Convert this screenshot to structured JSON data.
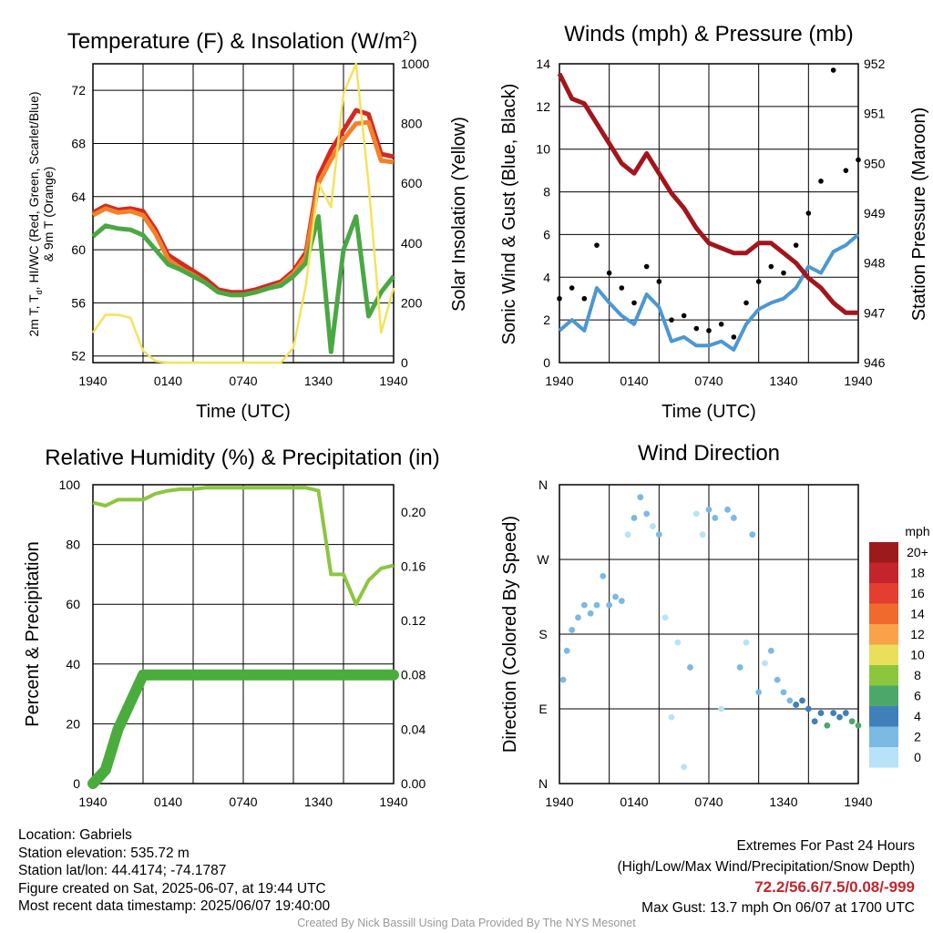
{
  "panels": {
    "temperature": {
      "title": "Temperature (F) & Insolation (W/m",
      "title_sup": "2",
      "title_end": ")",
      "ylabel_left_line1": "2m T, T",
      "ylabel_left_sub": "d",
      "ylabel_left_rest": ", HI/WC (Red, Green, Scarlet/Blue)",
      "ylabel_left_line2": "& 9m T (Orange)",
      "ylabel_right": "Solar Insolation (Yellow)",
      "xlabel": "Time (UTC)"
    },
    "winds": {
      "title": "Winds (mph) & Pressure (mb)",
      "ylabel_left": "Sonic Wind & Gust (Blue, Black)",
      "ylabel_right": "Station Pressure (Maroon)",
      "xlabel": "Time (UTC)"
    },
    "humidity": {
      "title": "Relative Humidity (%) & Precipitation (in)",
      "ylabel_left": "Percent & Precipitation"
    },
    "wind_direction": {
      "title": "Wind Direction",
      "ylabel_left": "Direction (Colored By Speed)",
      "colorbar_unit": "mph"
    }
  },
  "chart_data": [
    {
      "type": "line",
      "title": "Temperature (F) & Insolation (W/m2)",
      "xlabel": "Time (UTC)",
      "x_ticks": [
        "1940",
        "0140",
        "0740",
        "1340",
        "1940"
      ],
      "x": [
        "1940",
        "2040",
        "2140",
        "2240",
        "2340",
        "0040",
        "0140",
        "0240",
        "0340",
        "0440",
        "0540",
        "0640",
        "0740",
        "0840",
        "0940",
        "1040",
        "1140",
        "1240",
        "1340",
        "1440",
        "1540",
        "1640",
        "1740",
        "1840",
        "1940"
      ],
      "ylim_left": [
        51.5,
        74
      ],
      "y_ticks_left": [
        52,
        56,
        60,
        64,
        68,
        72
      ],
      "ylim_right": [
        0,
        1000
      ],
      "y_ticks_right": [
        0,
        200,
        400,
        600,
        800,
        1000
      ],
      "grid": true,
      "series": [
        {
          "name": "2m T",
          "color": "#d42a20",
          "axis": "left",
          "values": [
            62.8,
            63.3,
            63.0,
            63.1,
            62.9,
            61.5,
            59.6,
            59.0,
            58.4,
            57.8,
            57.0,
            56.8,
            56.8,
            57.0,
            57.3,
            57.6,
            58.4,
            59.8,
            65.5,
            67.5,
            69.0,
            70.5,
            70.2,
            67.2,
            67.0
          ]
        },
        {
          "name": "9m T",
          "color": "#f2822a",
          "axis": "left",
          "values": [
            62.6,
            63.1,
            62.8,
            62.9,
            62.6,
            61.2,
            59.3,
            58.6,
            58.1,
            57.5,
            56.8,
            56.6,
            56.6,
            56.8,
            57.1,
            57.4,
            58.2,
            59.5,
            65.0,
            66.8,
            68.3,
            69.5,
            69.6,
            66.7,
            66.6
          ]
        },
        {
          "name": "Td",
          "color": "#4aa843",
          "axis": "left",
          "values": [
            61.0,
            61.8,
            61.6,
            61.5,
            61.1,
            60.0,
            58.9,
            58.5,
            58.0,
            57.5,
            56.8,
            56.6,
            56.6,
            56.8,
            57.1,
            57.3,
            58.0,
            59.0,
            62.5,
            52.3,
            60.0,
            62.5,
            55.0,
            56.8,
            58.0
          ]
        },
        {
          "name": "Solar Insolation",
          "color": "#f5e25c",
          "axis": "right",
          "values": [
            100,
            160,
            160,
            150,
            40,
            5,
            0,
            0,
            0,
            0,
            0,
            0,
            0,
            0,
            0,
            0,
            50,
            260,
            600,
            520,
            900,
            1000,
            600,
            100,
            250
          ]
        }
      ]
    },
    {
      "type": "line",
      "title": "Winds (mph) & Pressure (mb)",
      "xlabel": "Time (UTC)",
      "x_ticks": [
        "1940",
        "0140",
        "0740",
        "1340",
        "1940"
      ],
      "x": [
        "1940",
        "2040",
        "2140",
        "2240",
        "2340",
        "0040",
        "0140",
        "0240",
        "0340",
        "0440",
        "0540",
        "0640",
        "0740",
        "0840",
        "0940",
        "1040",
        "1140",
        "1240",
        "1340",
        "1440",
        "1540",
        "1640",
        "1740",
        "1840",
        "1940"
      ],
      "ylim_left": [
        0,
        14
      ],
      "y_ticks_left": [
        0,
        2,
        4,
        6,
        8,
        10,
        12,
        14
      ],
      "ylim_right": [
        946,
        952
      ],
      "y_ticks_right": [
        946,
        947,
        948,
        949,
        950,
        951,
        952
      ],
      "grid": true,
      "series": [
        {
          "name": "Sonic Wind",
          "color": "#4c97d1",
          "axis": "left",
          "values": [
            1.5,
            2.0,
            1.5,
            3.5,
            2.8,
            2.2,
            1.8,
            3.2,
            2.6,
            1.0,
            1.2,
            0.8,
            0.8,
            1.0,
            0.6,
            1.8,
            2.5,
            2.8,
            3.0,
            3.5,
            4.5,
            4.2,
            5.2,
            5.5,
            6.0
          ]
        },
        {
          "name": "Gust",
          "color": "#000000",
          "axis": "left",
          "values": [
            3.0,
            3.5,
            3.0,
            5.5,
            4.2,
            3.5,
            2.8,
            4.5,
            3.8,
            2.0,
            2.2,
            1.6,
            1.5,
            1.8,
            1.2,
            2.8,
            3.8,
            4.5,
            4.2,
            5.5,
            7.0,
            8.5,
            13.7,
            9.0,
            9.5
          ]
        },
        {
          "name": "Station Pressure",
          "color": "#a3151c",
          "axis": "right",
          "values": [
            951.8,
            951.3,
            951.2,
            950.8,
            950.4,
            950.0,
            949.8,
            950.2,
            949.8,
            949.4,
            949.1,
            948.7,
            948.4,
            948.3,
            948.2,
            948.2,
            948.4,
            948.4,
            948.2,
            948.0,
            947.7,
            947.5,
            947.2,
            947.0,
            947.0
          ]
        }
      ]
    },
    {
      "type": "line",
      "title": "Relative Humidity (%) & Precipitation (in)",
      "x_ticks": [
        "1940",
        "0140",
        "0740",
        "1340",
        "1940"
      ],
      "x": [
        "1940",
        "2040",
        "2140",
        "2240",
        "2340",
        "0040",
        "0140",
        "0240",
        "0340",
        "0440",
        "0540",
        "0640",
        "0740",
        "0840",
        "0940",
        "1040",
        "1140",
        "1240",
        "1340",
        "1440",
        "1540",
        "1640",
        "1740",
        "1840",
        "1940"
      ],
      "ylim_left": [
        0,
        100
      ],
      "y_ticks_left": [
        0,
        20,
        40,
        60,
        80,
        100
      ],
      "ylim_right": [
        0,
        0.22
      ],
      "y_ticks_right": [
        "0.00",
        "0.04",
        "0.08",
        "0.12",
        "0.16",
        "0.20"
      ],
      "grid": true,
      "series": [
        {
          "name": "Relative Humidity",
          "color": "#8cc63f",
          "axis": "left",
          "values": [
            94,
            93,
            95,
            95,
            95,
            97,
            98,
            98.5,
            98.5,
            99,
            99,
            99,
            99,
            99,
            99,
            99,
            99,
            99,
            98,
            70,
            70,
            60,
            68,
            72,
            73
          ]
        },
        {
          "name": "Precipitation",
          "color": "#4aac3c",
          "axis": "right",
          "values": [
            0.0,
            0.01,
            0.04,
            0.06,
            0.08,
            0.08,
            0.08,
            0.08,
            0.08,
            0.08,
            0.08,
            0.08,
            0.08,
            0.08,
            0.08,
            0.08,
            0.08,
            0.08,
            0.08,
            0.08,
            0.08,
            0.08,
            0.08,
            0.08,
            0.08
          ]
        }
      ]
    },
    {
      "type": "scatter",
      "title": "Wind Direction",
      "x_ticks": [
        "1940",
        "0140",
        "0740",
        "1340",
        "1940"
      ],
      "y_ticks": [
        "N",
        "E",
        "S",
        "W",
        "N"
      ],
      "ylim": [
        0,
        360
      ],
      "grid": true,
      "colorbar": {
        "unit": "mph",
        "labels": [
          "20+",
          "18",
          "16",
          "14",
          "12",
          "10",
          "8",
          "6",
          "4",
          "2",
          "0"
        ],
        "colors": [
          "#9c1a1c",
          "#c4252c",
          "#e33e2f",
          "#f06a2e",
          "#f9a24a",
          "#e9df5b",
          "#8cc63f",
          "#4ca86a",
          "#3f7fba",
          "#7cb9e3",
          "#b8e2f8"
        ]
      },
      "points": [
        {
          "x": 0.3,
          "dir": 125,
          "speed": 2
        },
        {
          "x": 0.6,
          "dir": 160,
          "speed": 2
        },
        {
          "x": 1.0,
          "dir": 185,
          "speed": 2
        },
        {
          "x": 1.5,
          "dir": 200,
          "speed": 3
        },
        {
          "x": 2.0,
          "dir": 215,
          "speed": 3
        },
        {
          "x": 2.5,
          "dir": 205,
          "speed": 3
        },
        {
          "x": 3.0,
          "dir": 215,
          "speed": 2
        },
        {
          "x": 3.5,
          "dir": 250,
          "speed": 2
        },
        {
          "x": 4.0,
          "dir": 215,
          "speed": 3
        },
        {
          "x": 4.5,
          "dir": 225,
          "speed": 3
        },
        {
          "x": 5.0,
          "dir": 220,
          "speed": 2
        },
        {
          "x": 5.5,
          "dir": 300,
          "speed": 1
        },
        {
          "x": 6.0,
          "dir": 320,
          "speed": 2
        },
        {
          "x": 6.5,
          "dir": 345,
          "speed": 2
        },
        {
          "x": 7.0,
          "dir": 325,
          "speed": 3
        },
        {
          "x": 7.5,
          "dir": 310,
          "speed": 1
        },
        {
          "x": 8.0,
          "dir": 300,
          "speed": 2
        },
        {
          "x": 8.5,
          "dir": 200,
          "speed": 1
        },
        {
          "x": 9.0,
          "dir": 80,
          "speed": 1
        },
        {
          "x": 9.5,
          "dir": 170,
          "speed": 1
        },
        {
          "x": 10.0,
          "dir": 20,
          "speed": 1
        },
        {
          "x": 10.5,
          "dir": 140,
          "speed": 2
        },
        {
          "x": 11.0,
          "dir": 325,
          "speed": 1
        },
        {
          "x": 11.5,
          "dir": 300,
          "speed": 1
        },
        {
          "x": 12.0,
          "dir": 330,
          "speed": 2
        },
        {
          "x": 12.5,
          "dir": 320,
          "speed": 2
        },
        {
          "x": 13.0,
          "dir": 90,
          "speed": 1
        },
        {
          "x": 13.5,
          "dir": 330,
          "speed": 3
        },
        {
          "x": 14.0,
          "dir": 320,
          "speed": 2
        },
        {
          "x": 14.5,
          "dir": 140,
          "speed": 2
        },
        {
          "x": 15.0,
          "dir": 170,
          "speed": 1
        },
        {
          "x": 15.5,
          "dir": 300,
          "speed": 2
        },
        {
          "x": 16.0,
          "dir": 110,
          "speed": 3
        },
        {
          "x": 16.5,
          "dir": 145,
          "speed": 1
        },
        {
          "x": 17.0,
          "dir": 160,
          "speed": 2
        },
        {
          "x": 17.5,
          "dir": 125,
          "speed": 3
        },
        {
          "x": 18.0,
          "dir": 110,
          "speed": 3
        },
        {
          "x": 18.5,
          "dir": 100,
          "speed": 3
        },
        {
          "x": 19.0,
          "dir": 95,
          "speed": 4
        },
        {
          "x": 19.5,
          "dir": 100,
          "speed": 4
        },
        {
          "x": 20.0,
          "dir": 90,
          "speed": 4
        },
        {
          "x": 20.5,
          "dir": 75,
          "speed": 5
        },
        {
          "x": 21.0,
          "dir": 85,
          "speed": 5
        },
        {
          "x": 21.5,
          "dir": 70,
          "speed": 6
        },
        {
          "x": 22.0,
          "dir": 85,
          "speed": 4
        },
        {
          "x": 22.5,
          "dir": 80,
          "speed": 4
        },
        {
          "x": 23.0,
          "dir": 85,
          "speed": 5
        },
        {
          "x": 23.5,
          "dir": 75,
          "speed": 6
        },
        {
          "x": 24.0,
          "dir": 70,
          "speed": 6
        }
      ]
    }
  ],
  "footer": {
    "location": "Location: Gabriels",
    "elevation": "Station elevation: 535.72 m",
    "latlon": "Station lat/lon: 44.4174; -74.1787",
    "created": "Figure created on Sat, 2025-06-07, at 19:44 UTC",
    "recent": "Most recent data timestamp: 2025/06/07 19:40:00",
    "extremes_title": "Extremes For Past 24 Hours",
    "extremes_sub": "(High/Low/Max Wind/Precipitation/Snow Depth)",
    "extremes_values": "72.2/56.6/7.5/0.08/-999",
    "max_gust": "Max Gust: 13.7 mph On 06/07 at 1700 UTC",
    "credit": "Created By Nick Bassill Using Data Provided By The NYS Mesonet"
  }
}
